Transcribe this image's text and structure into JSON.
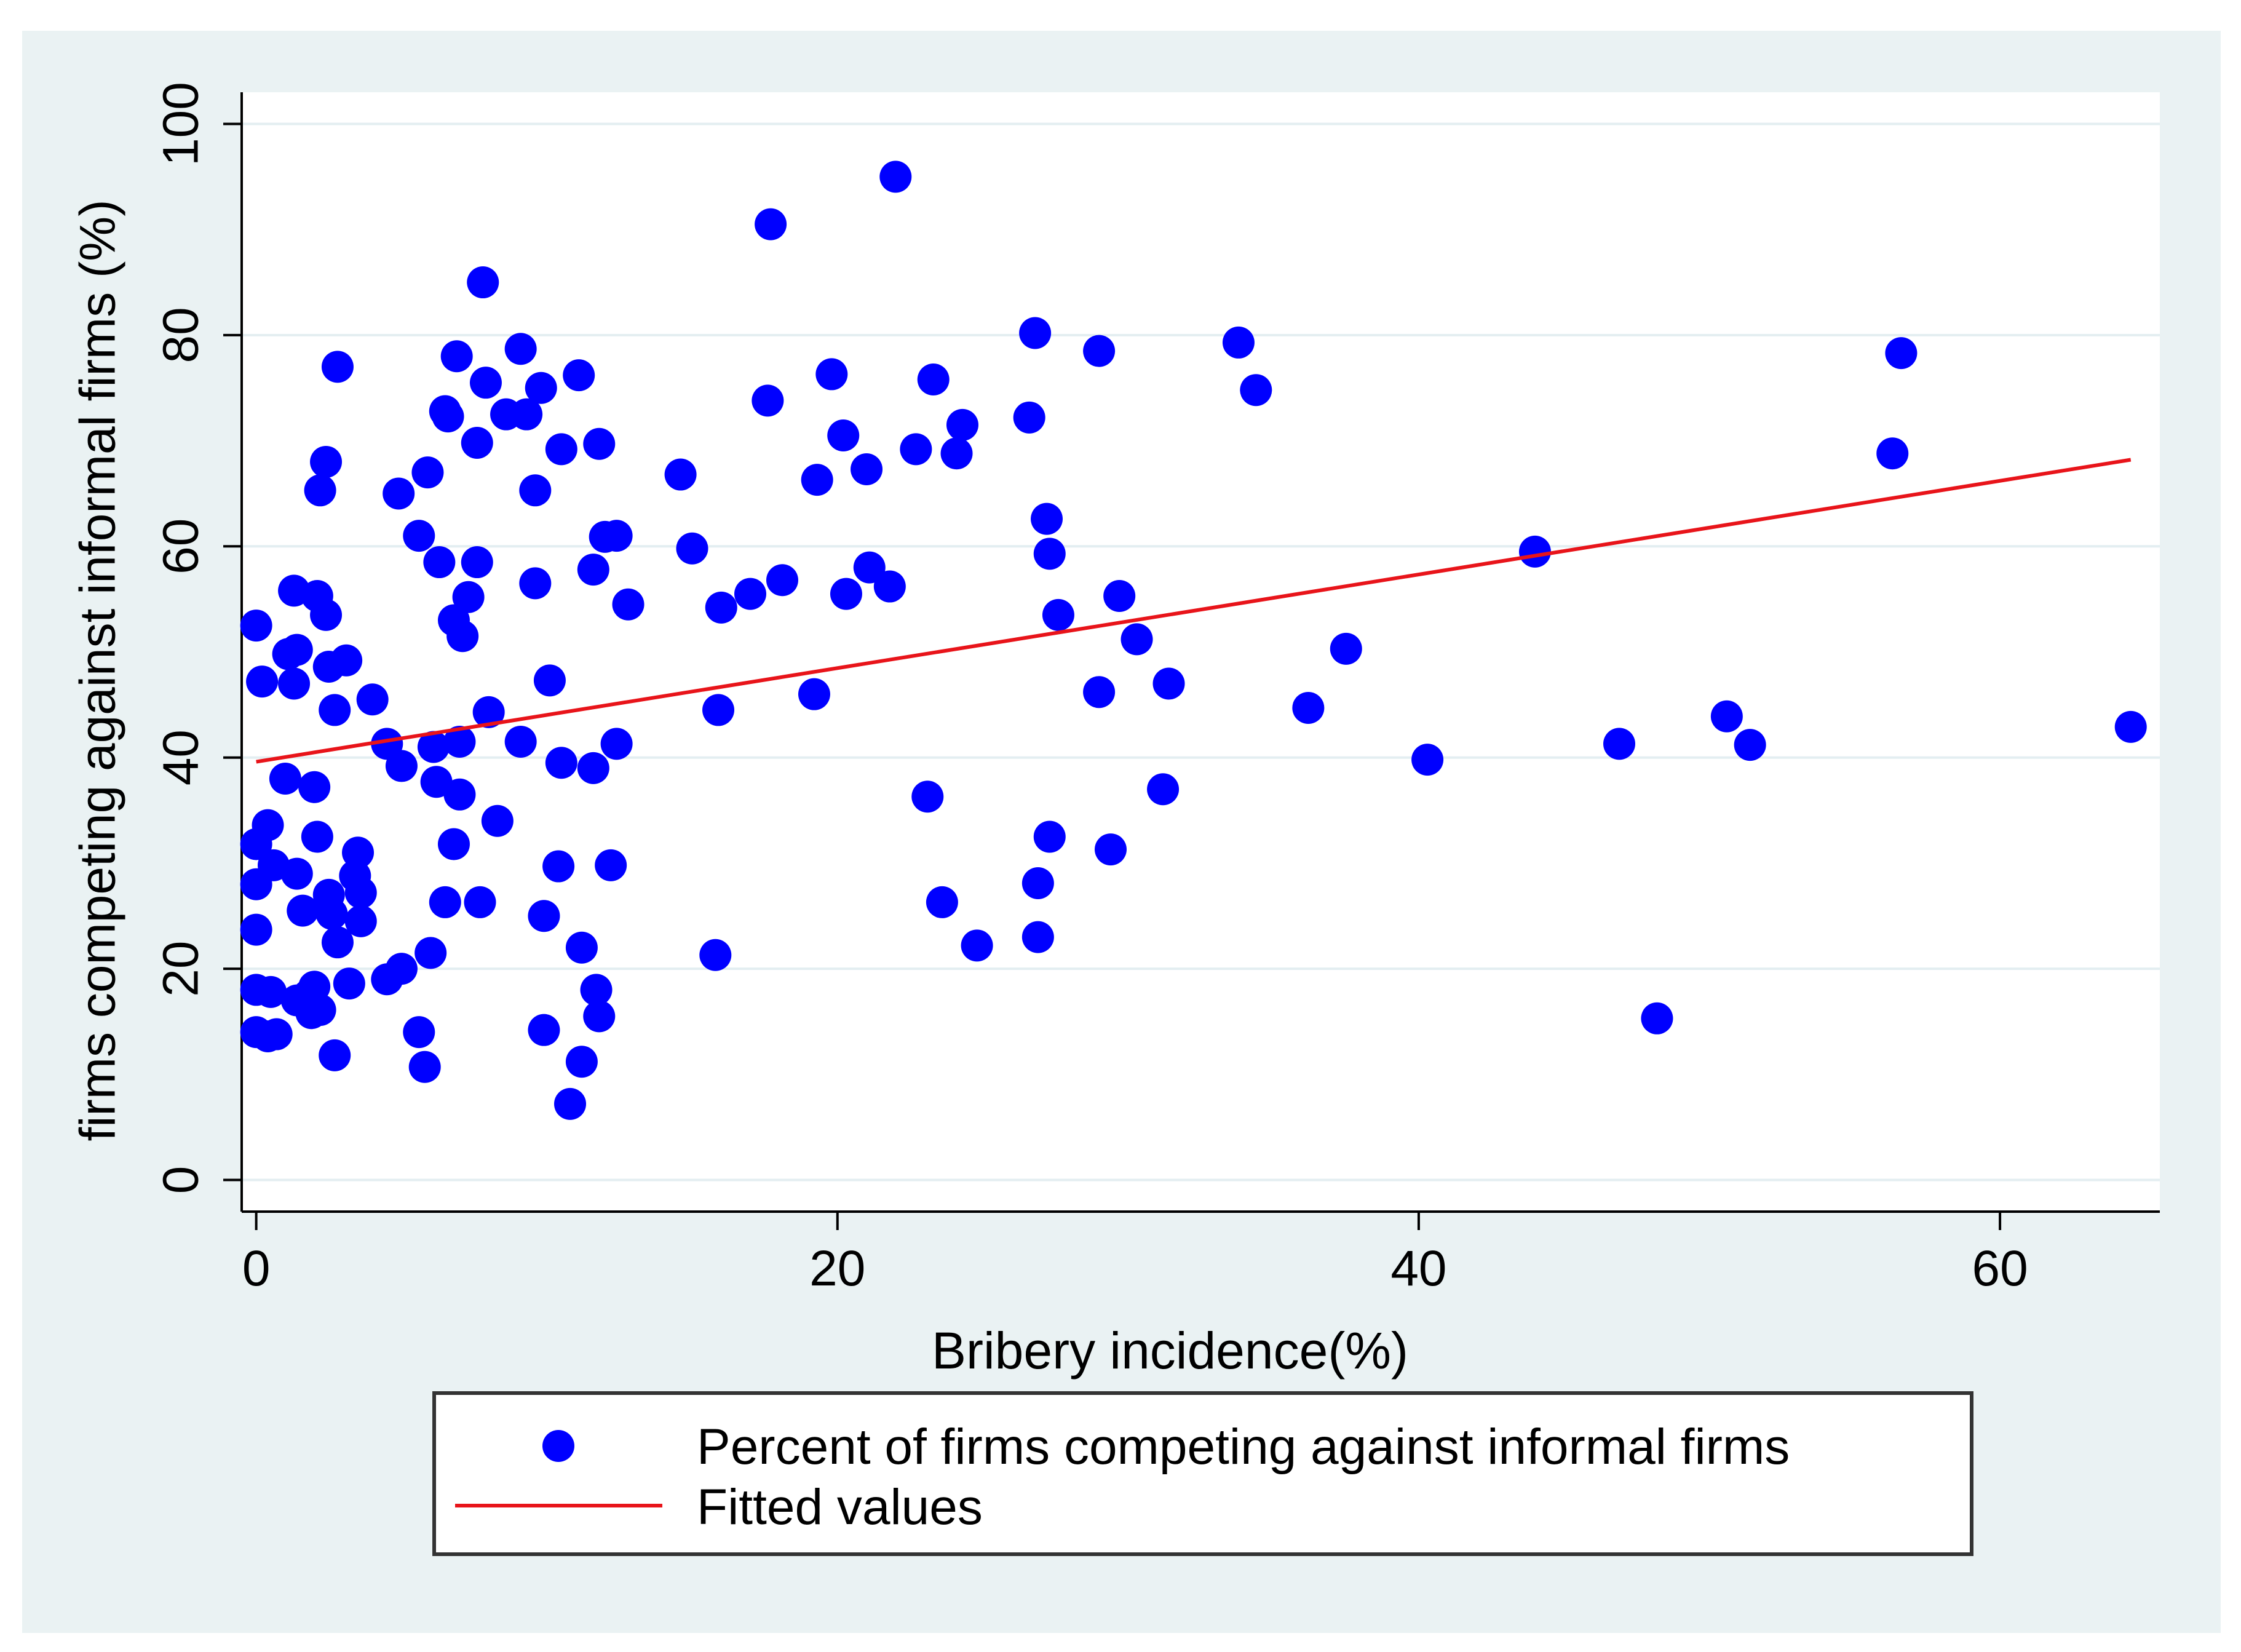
{
  "chart_data": {
    "type": "scatter",
    "title": "",
    "xlabel": "Bribery incidence(%)",
    "ylabel": "firms competing against informal firms (%)",
    "xlim": [
      -0.5,
      65.5
    ],
    "ylim": [
      -3,
      103
    ],
    "xticks": [
      0,
      20,
      40,
      60
    ],
    "yticks": [
      0,
      20,
      40,
      60,
      80,
      100
    ],
    "grid": true,
    "legend_position": "bottom",
    "colors": {
      "outer_background": "#eaf2f3",
      "plot_background": "#ffffff",
      "gridline": "#e3eef1",
      "axis": "#000000",
      "marker": "#0000ff",
      "fit_line": "#e8141a",
      "text": "#000000"
    },
    "series": [
      {
        "name": "Percent of firms competing against informal firms",
        "kind": "scatter",
        "points": [
          [
            0,
            52.5
          ],
          [
            0.2,
            47.2
          ],
          [
            0,
            31.8
          ],
          [
            0.4,
            33.6
          ],
          [
            0,
            28
          ],
          [
            0.6,
            29.8
          ],
          [
            0,
            23.7
          ],
          [
            0,
            18
          ],
          [
            0.5,
            17.8
          ],
          [
            0,
            14
          ],
          [
            0.4,
            13.6
          ],
          [
            0.7,
            13.8
          ],
          [
            1,
            38
          ],
          [
            1.3,
            55.8
          ],
          [
            1.1,
            49.8
          ],
          [
            1.4,
            50.2
          ],
          [
            1.3,
            47
          ],
          [
            1.4,
            29
          ],
          [
            1.6,
            25.5
          ],
          [
            1.4,
            17
          ],
          [
            1.8,
            17.5
          ],
          [
            1.9,
            15.8
          ],
          [
            2,
            18.3
          ],
          [
            2.2,
            16.1
          ],
          [
            2,
            37.2
          ],
          [
            2.1,
            32.5
          ],
          [
            2.1,
            55.3
          ],
          [
            2.2,
            65.3
          ],
          [
            2.4,
            68
          ],
          [
            2.4,
            53.5
          ],
          [
            2.5,
            48.6
          ],
          [
            2.5,
            27
          ],
          [
            2.6,
            25.2
          ],
          [
            2.7,
            44.5
          ],
          [
            2.8,
            77
          ],
          [
            2.8,
            22.5
          ],
          [
            2.7,
            11.8
          ],
          [
            3.1,
            49.2
          ],
          [
            3.2,
            18.6
          ],
          [
            3.4,
            28.8
          ],
          [
            3.5,
            31
          ],
          [
            3.6,
            27.2
          ],
          [
            3.6,
            24.5
          ],
          [
            4,
            45.5
          ],
          [
            4.5,
            41.3
          ],
          [
            4.5,
            19
          ],
          [
            4.9,
            65
          ],
          [
            5,
            39.2
          ],
          [
            5,
            20
          ],
          [
            5.6,
            61
          ],
          [
            5.6,
            14
          ],
          [
            5.8,
            10.7
          ],
          [
            5.9,
            67
          ],
          [
            6,
            21.5
          ],
          [
            6.1,
            41
          ],
          [
            6.2,
            37.7
          ],
          [
            6.3,
            58.5
          ],
          [
            6.5,
            72.8
          ],
          [
            6.5,
            26.3
          ],
          [
            6.6,
            72.3
          ],
          [
            6.8,
            53
          ],
          [
            6.8,
            31.8
          ],
          [
            6.9,
            78
          ],
          [
            7,
            36.5
          ],
          [
            7,
            41.5
          ],
          [
            7.1,
            51.5
          ],
          [
            7.3,
            55.2
          ],
          [
            7.6,
            69.8
          ],
          [
            7.6,
            58.5
          ],
          [
            7.7,
            26.3
          ],
          [
            7.8,
            85
          ],
          [
            7.9,
            75.5
          ],
          [
            8,
            44.3
          ],
          [
            8.3,
            34
          ],
          [
            8.6,
            72.5
          ],
          [
            9.1,
            78.7
          ],
          [
            9.1,
            41.5
          ],
          [
            9.3,
            72.5
          ],
          [
            9.6,
            65.3
          ],
          [
            9.6,
            56.5
          ],
          [
            9.8,
            75
          ],
          [
            9.9,
            14.2
          ],
          [
            9.9,
            25
          ],
          [
            10.1,
            47.3
          ],
          [
            10.4,
            29.7
          ],
          [
            10.5,
            69.2
          ],
          [
            10.5,
            39.5
          ],
          [
            10.8,
            7.2
          ],
          [
            11.1,
            76.2
          ],
          [
            11.2,
            22
          ],
          [
            11.2,
            11.2
          ],
          [
            11.6,
            39
          ],
          [
            11.6,
            57.8
          ],
          [
            11.7,
            18
          ],
          [
            11.8,
            69.7
          ],
          [
            11.8,
            15.5
          ],
          [
            12,
            60.9
          ],
          [
            12.2,
            29.8
          ],
          [
            12.4,
            61
          ],
          [
            12.4,
            41.3
          ],
          [
            12.8,
            54.5
          ],
          [
            14.6,
            66.8
          ],
          [
            15,
            59.8
          ],
          [
            15.8,
            21.3
          ],
          [
            15.9,
            44.5
          ],
          [
            16,
            54.2
          ],
          [
            17,
            55.5
          ],
          [
            17.6,
            73.8
          ],
          [
            17.7,
            90.5
          ],
          [
            18.1,
            56.8
          ],
          [
            19.2,
            46
          ],
          [
            19.3,
            66.3
          ],
          [
            19.8,
            76.3
          ],
          [
            20.2,
            70.5
          ],
          [
            20.3,
            55.5
          ],
          [
            21,
            67.3
          ],
          [
            21.1,
            58
          ],
          [
            21.8,
            56.2
          ],
          [
            22,
            95
          ],
          [
            22.7,
            69.2
          ],
          [
            23.1,
            36.3
          ],
          [
            23.3,
            75.8
          ],
          [
            23.6,
            26.3
          ],
          [
            24.1,
            68.8
          ],
          [
            24.3,
            71.5
          ],
          [
            24.8,
            22.2
          ],
          [
            26.6,
            72.2
          ],
          [
            26.8,
            80.2
          ],
          [
            26.9,
            23
          ],
          [
            26.9,
            28.1
          ],
          [
            27.2,
            62.6
          ],
          [
            27.3,
            59.3
          ],
          [
            27.3,
            32.5
          ],
          [
            27.6,
            53.5
          ],
          [
            29,
            78.5
          ],
          [
            29,
            46.2
          ],
          [
            29.4,
            31.3
          ],
          [
            29.7,
            55.3
          ],
          [
            30.3,
            51.2
          ],
          [
            31.2,
            37
          ],
          [
            31.4,
            47
          ],
          [
            33.8,
            79.3
          ],
          [
            34.4,
            74.8
          ],
          [
            36.2,
            44.7
          ],
          [
            37.5,
            50.3
          ],
          [
            40.3,
            39.8
          ],
          [
            44,
            59.5
          ],
          [
            46.9,
            41.3
          ],
          [
            48.2,
            15.3
          ],
          [
            50.6,
            43.9
          ],
          [
            51.4,
            41.2
          ],
          [
            56.3,
            68.8
          ],
          [
            56.6,
            78.3
          ],
          [
            64.5,
            42.9
          ]
        ]
      },
      {
        "name": "Fitted values",
        "kind": "line",
        "points": [
          [
            0,
            39.6
          ],
          [
            64.5,
            68.2
          ]
        ]
      }
    ]
  }
}
